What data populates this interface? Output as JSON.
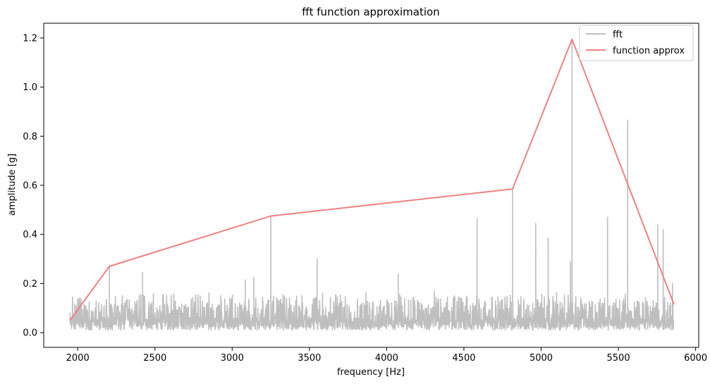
{
  "chart_data": {
    "type": "line",
    "title": "fft function approximation",
    "xlabel": "frequency [Hz]",
    "ylabel": "amplitude [g]",
    "xlim": [
      1780,
      6020
    ],
    "ylim": [
      -0.06,
      1.26
    ],
    "xticks": [
      2000,
      2500,
      3000,
      3500,
      4000,
      4500,
      5000,
      5500,
      6000
    ],
    "yticks": [
      0.0,
      0.2,
      0.4,
      0.6,
      0.8,
      1.0,
      1.2
    ],
    "ytick_labels": [
      "0.0",
      "0.2",
      "0.4",
      "0.6",
      "0.8",
      "1.0",
      "1.2"
    ],
    "grid": false,
    "legend_position": "top-right",
    "series": [
      {
        "name": "fft",
        "color": "#bfbfbf",
        "x_range": [
          1950,
          5860
        ],
        "noise_floor": 0.01,
        "noise_band": [
          0.02,
          0.17
        ],
        "peaks": [
          {
            "x": 2205,
            "y": 0.27
          },
          {
            "x": 2420,
            "y": 0.245
          },
          {
            "x": 3085,
            "y": 0.215
          },
          {
            "x": 3140,
            "y": 0.225
          },
          {
            "x": 3250,
            "y": 0.475
          },
          {
            "x": 3550,
            "y": 0.3
          },
          {
            "x": 4075,
            "y": 0.24
          },
          {
            "x": 4585,
            "y": 0.465
          },
          {
            "x": 4815,
            "y": 0.585
          },
          {
            "x": 4965,
            "y": 0.445
          },
          {
            "x": 5045,
            "y": 0.385
          },
          {
            "x": 5190,
            "y": 0.29
          },
          {
            "x": 5200,
            "y": 1.195
          },
          {
            "x": 5430,
            "y": 0.47
          },
          {
            "x": 5560,
            "y": 0.865
          },
          {
            "x": 5755,
            "y": 0.44
          },
          {
            "x": 5790,
            "y": 0.42
          },
          {
            "x": 5850,
            "y": 0.2
          }
        ]
      },
      {
        "name": "function approx",
        "color": "#f08080",
        "x": [
          1950,
          2205,
          3250,
          4815,
          5200,
          5860
        ],
        "y": [
          0.05,
          0.27,
          0.475,
          0.585,
          1.195,
          0.115
        ]
      }
    ]
  }
}
